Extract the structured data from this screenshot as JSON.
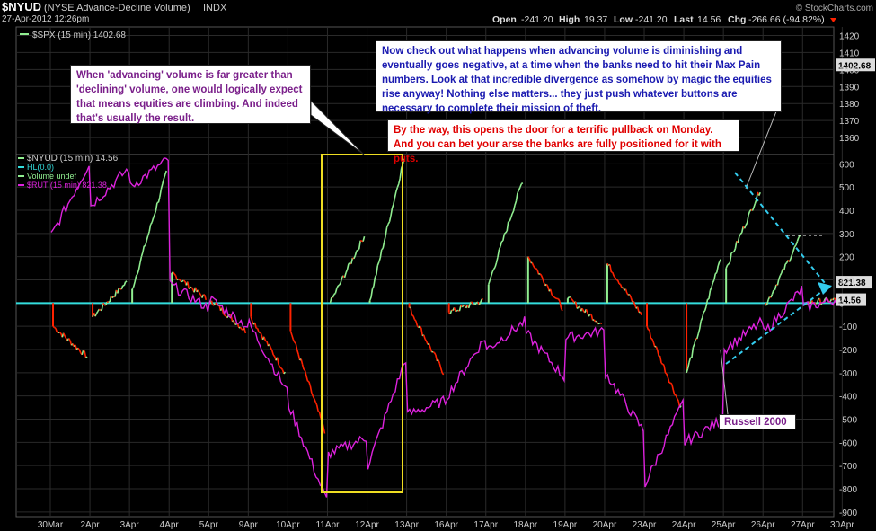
{
  "header": {
    "symbol": "$NYUD",
    "description": "(NYSE Advance-Decline Volume)",
    "exchange": "INDX",
    "date": "27-Apr-2012 12:26pm",
    "source": "© StockCharts.com",
    "open_label": "Open",
    "open": "-241.20",
    "high_label": "High",
    "high": "19.37",
    "low_label": "Low",
    "low": "-241.20",
    "last_label": "Last",
    "last": "14.56",
    "chg_label": "Chg",
    "chg": "-266.66 (-94.82%)"
  },
  "colors": {
    "background": "#000000",
    "grid": "#2a2a2a",
    "up": "#90ee90",
    "down": "#ff2200",
    "rut": "#dd22dd",
    "hl": "#33dddd",
    "highlight_box": "#eedd22",
    "axis_text": "#cccccc"
  },
  "annotations": {
    "note1": "When 'advancing' volume is far greater than 'declining' volume, one would logically expect that means equities are climbing.  And indeed that's usually the result.",
    "note2": "Now check out what happens when advancing volume is diminishing and eventually goes negative, at a time when the banks need to hit their Max Pain numbers.  Look at that incredible divergence as somehow by magic the equities rise anyway!  Nothing else matters... they just push whatever buttons are necessary to complete their mission of theft.",
    "note3": "By the way, this opens the door for a terrific pullback on Monday.  And you can bet your arse the banks are fully positioned for it with puts.",
    "note4": "Russell 2000"
  },
  "chart_data": [
    {
      "type": "line",
      "panel": "top",
      "legend": "$SPX (15 min) 1402.68",
      "series": [
        {
          "name": "$SPX (15 min)",
          "last": "1402.68"
        }
      ],
      "ylim": [
        1350,
        1425
      ],
      "yticks": [
        1360,
        1370,
        1380,
        1390,
        1400,
        1410,
        1420
      ],
      "last_value": "1402.68"
    },
    {
      "type": "bar",
      "panel": "main",
      "legend": [
        "$NYUD (15 min) 14.56",
        "HL(0.0)",
        "Volume undef",
        "$RUT (15 min) 821.38"
      ],
      "ylim": [
        -920,
        640
      ],
      "yticks": [
        600,
        500,
        400,
        300,
        200,
        100,
        0,
        -100,
        -200,
        -300,
        -400,
        -500,
        -600,
        -700,
        -800,
        -900
      ],
      "hline": 0,
      "last_value": "14.56",
      "rut_last": "821.38",
      "x": [
        "30Mar",
        "2Apr",
        "3Apr",
        "4Apr",
        "5Apr",
        "9Apr",
        "10Apr",
        "11Apr",
        "12Apr",
        "13Apr",
        "16Apr",
        "17Apr",
        "18Apr",
        "19Apr",
        "20Apr",
        "23Apr",
        "24Apr",
        "25Apr",
        "26Apr",
        "27Apr",
        "30Apr"
      ],
      "nyud_sessions": [
        [
          -100,
          -230
        ],
        [
          -60,
          90
        ],
        [
          60,
          560
        ],
        [
          130,
          20
        ],
        [
          10,
          -120
        ],
        [
          -60,
          -300
        ],
        [
          -120,
          -550
        ],
        [
          0,
          290
        ],
        [
          10,
          620
        ],
        [
          -20,
          -300
        ],
        [
          -40,
          10
        ],
        [
          80,
          530
        ],
        [
          200,
          -20
        ],
        [
          20,
          -90
        ],
        [
          170,
          -50
        ],
        [
          -100,
          -450
        ],
        [
          -300,
          200
        ],
        [
          150,
          490
        ],
        [
          -10,
          280
        ],
        [
          0,
          15
        ]
      ],
      "rut_sessions": [
        [
          290,
          600
        ],
        [
          420,
          580
        ],
        [
          500,
          620
        ],
        [
          80,
          -20
        ],
        [
          20,
          -100
        ],
        [
          -90,
          -380
        ],
        [
          -440,
          -850
        ],
        [
          -650,
          -580
        ],
        [
          -700,
          -240
        ],
        [
          -480,
          -420
        ],
        [
          -400,
          -150
        ],
        [
          -200,
          -80
        ],
        [
          -130,
          -320
        ],
        [
          -150,
          -120
        ],
        [
          -300,
          -550
        ],
        [
          -780,
          -430
        ],
        [
          -600,
          -500
        ],
        [
          -200,
          -80
        ],
        [
          -130,
          60
        ],
        [
          -20,
          20
        ]
      ]
    }
  ]
}
